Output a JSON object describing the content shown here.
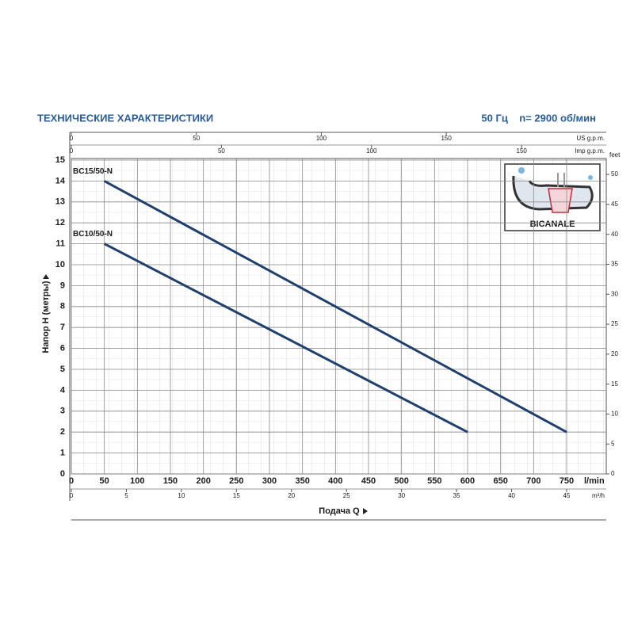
{
  "chart_data": {
    "type": "line",
    "title": "ТЕХНИЧЕСКИЕ ХАРАКТЕРИСТИКИ",
    "subtitle": "50 Гц    n= 2900 об/мин",
    "xlabel": "Подача Q",
    "ylabel": "Напор H (метры)",
    "xunit": "l/min",
    "xlim": [
      0,
      810
    ],
    "xticks": [
      0,
      50,
      100,
      150,
      200,
      250,
      300,
      350,
      400,
      450,
      500,
      550,
      600,
      650,
      700,
      750
    ],
    "ylim": [
      0,
      15
    ],
    "yticks": [
      0,
      1,
      2,
      3,
      4,
      5,
      6,
      7,
      8,
      9,
      10,
      11,
      12,
      13,
      14,
      15
    ],
    "y2label": "feet",
    "y2lim": [
      0,
      52.4
    ],
    "y2ticks": [
      0,
      5,
      10,
      15,
      20,
      25,
      30,
      35,
      40,
      45,
      50
    ],
    "secondary_x": [
      {
        "unit": "m³/h",
        "lim": [
          0,
          48.6
        ],
        "ticks": [
          0,
          5,
          10,
          15,
          20,
          25,
          30,
          35,
          40,
          45
        ]
      },
      {
        "unit": "US g.p.m.",
        "lim": [
          0,
          214
        ],
        "ticks": [
          0,
          50,
          100,
          150
        ]
      },
      {
        "unit": "Imp g.p.m.",
        "lim": [
          0,
          178.2
        ],
        "ticks": [
          0,
          50,
          100,
          150
        ]
      }
    ],
    "grid": true,
    "inset_label": "BICANALE",
    "series": [
      {
        "name": "BC15/50-N",
        "color": "#1f3f6d",
        "x": [
          50,
          750
        ],
        "values": [
          14,
          2
        ]
      },
      {
        "name": "BC10/50-N",
        "color": "#1f3f6d",
        "x": [
          50,
          600
        ],
        "values": [
          11,
          2
        ]
      }
    ]
  }
}
